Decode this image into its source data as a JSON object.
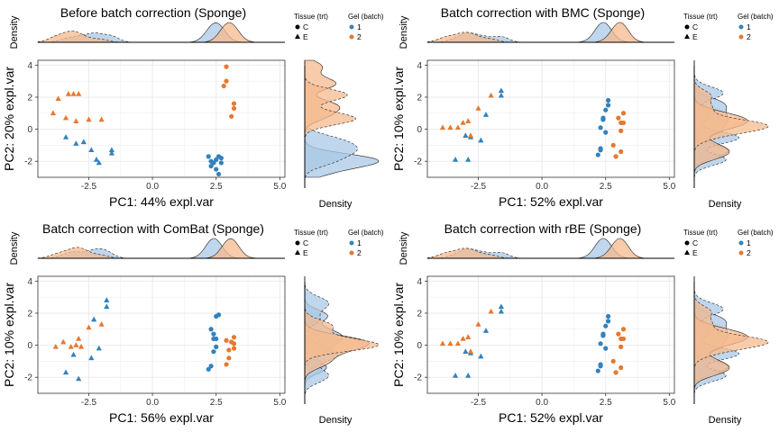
{
  "colors": {
    "batch1": "#3182bd",
    "batch2": "#e6782f",
    "fill1": "#a9c8e6",
    "fill2": "#f6b98e",
    "grid": "#ebebeb"
  },
  "legend": {
    "tissue_title": "Tissue (trt)",
    "tissue_items": [
      "C",
      "E"
    ],
    "batch_title": "Gel (batch)",
    "batch_items": [
      "1",
      "2"
    ]
  },
  "chart_data": [
    {
      "type": "scatter",
      "title": "Before batch correction (Sponge)",
      "xlabel": "PC1: 44% expl.var",
      "ylabel": "PC2: 20% expl.var",
      "density_label": "Density",
      "xlim": [
        -4.5,
        5.2
      ],
      "ylim": [
        -3.0,
        4.3
      ],
      "xticks": [
        -2.5,
        0.0,
        2.5,
        5.0
      ],
      "yticks": [
        -2,
        0,
        2,
        4
      ],
      "series": [
        {
          "tissue": "E",
          "batch": "1",
          "points": [
            [
              -3.4,
              -0.5
            ],
            [
              -3.0,
              -0.9
            ],
            [
              -2.7,
              -0.8
            ],
            [
              -2.4,
              -1.3
            ],
            [
              -2.2,
              -1.9
            ],
            [
              -2.1,
              -2.1
            ],
            [
              -1.6,
              -1.3
            ],
            [
              -1.6,
              -1.5
            ]
          ]
        },
        {
          "tissue": "E",
          "batch": "2",
          "points": [
            [
              -3.9,
              1.0
            ],
            [
              -3.7,
              1.9
            ],
            [
              -3.3,
              2.2
            ],
            [
              -3.1,
              2.2
            ],
            [
              -2.9,
              2.2
            ],
            [
              -3.4,
              0.7
            ],
            [
              -3.0,
              0.5
            ],
            [
              -2.5,
              0.6
            ],
            [
              -2.0,
              0.6
            ]
          ]
        },
        {
          "tissue": "C",
          "batch": "1",
          "points": [
            [
              2.2,
              -1.7
            ],
            [
              2.3,
              -2.0
            ],
            [
              2.4,
              -2.1
            ],
            [
              2.5,
              -1.9
            ],
            [
              2.6,
              -1.7
            ],
            [
              2.7,
              -1.8
            ],
            [
              2.5,
              -2.5
            ],
            [
              2.6,
              -2.8
            ],
            [
              2.3,
              -2.3
            ],
            [
              2.7,
              -2.1
            ]
          ]
        },
        {
          "tissue": "C",
          "batch": "2",
          "points": [
            [
              2.9,
              3.9
            ],
            [
              2.9,
              3.0
            ],
            [
              2.8,
              2.7
            ],
            [
              3.2,
              1.6
            ],
            [
              3.2,
              1.3
            ],
            [
              3.1,
              0.8
            ]
          ]
        }
      ]
    },
    {
      "type": "scatter",
      "title": "Batch correction with BMC (Sponge)",
      "xlabel": "PC1: 52% expl.var",
      "ylabel": "PC2: 10% expl.var",
      "density_label": "Density",
      "xlim": [
        -4.5,
        5.2
      ],
      "ylim": [
        -3.0,
        4.3
      ],
      "xticks": [
        -2.5,
        0.0,
        2.5,
        5.0
      ],
      "yticks": [
        -2,
        0,
        2,
        4
      ],
      "series": [
        {
          "tissue": "E",
          "batch": "1",
          "points": [
            [
              -3.4,
              -1.9
            ],
            [
              -2.9,
              -1.9
            ],
            [
              -3.0,
              -0.4
            ],
            [
              -2.8,
              -0.5
            ],
            [
              -2.4,
              -0.7
            ],
            [
              -2.2,
              0.9
            ],
            [
              -1.6,
              2.4
            ],
            [
              -1.6,
              2.1
            ]
          ]
        },
        {
          "tissue": "E",
          "batch": "2",
          "points": [
            [
              -3.9,
              0.1
            ],
            [
              -3.6,
              0.1
            ],
            [
              -3.3,
              0.1
            ],
            [
              -3.1,
              0.4
            ],
            [
              -2.9,
              0.5
            ],
            [
              -2.8,
              -0.4
            ],
            [
              -2.5,
              1.3
            ],
            [
              -2.0,
              2.1
            ]
          ]
        },
        {
          "tissue": "C",
          "batch": "1",
          "points": [
            [
              2.2,
              -1.6
            ],
            [
              2.3,
              -1.2
            ],
            [
              2.3,
              -1.3
            ],
            [
              2.3,
              0.1
            ],
            [
              2.4,
              0.7
            ],
            [
              2.5,
              1.2
            ],
            [
              2.6,
              1.5
            ],
            [
              2.6,
              1.8
            ],
            [
              2.4,
              0.6
            ],
            [
              2.5,
              -0.2
            ]
          ]
        },
        {
          "tissue": "C",
          "batch": "2",
          "points": [
            [
              2.8,
              -1.0
            ],
            [
              2.9,
              -1.7
            ],
            [
              3.1,
              -1.4
            ],
            [
              3.1,
              0.4
            ],
            [
              3.2,
              0.4
            ],
            [
              3.2,
              1.0
            ],
            [
              3.0,
              0.7
            ],
            [
              3.1,
              -0.1
            ]
          ]
        }
      ]
    },
    {
      "type": "scatter",
      "title": "Batch correction with ComBat (Sponge)",
      "xlabel": "PC1: 56% expl.var",
      "ylabel": "PC2: 10% expl.var",
      "density_label": "Density",
      "xlim": [
        -4.5,
        5.2
      ],
      "ylim": [
        -3.0,
        4.3
      ],
      "xticks": [
        -2.5,
        0.0,
        2.5,
        5.0
      ],
      "yticks": [
        -2,
        0,
        2,
        4
      ],
      "series": [
        {
          "tissue": "E",
          "batch": "1",
          "points": [
            [
              -3.4,
              -1.7
            ],
            [
              -2.9,
              -2.1
            ],
            [
              -2.4,
              -0.8
            ],
            [
              -2.1,
              -0.2
            ],
            [
              -1.8,
              2.8
            ],
            [
              -1.8,
              2.4
            ],
            [
              -2.3,
              1.6
            ],
            [
              -3.1,
              -0.6
            ]
          ]
        },
        {
          "tissue": "E",
          "batch": "2",
          "points": [
            [
              -3.8,
              -0.1
            ],
            [
              -3.5,
              0.2
            ],
            [
              -3.2,
              -0.1
            ],
            [
              -2.9,
              0.4
            ],
            [
              -2.8,
              -0.1
            ],
            [
              -2.5,
              1.1
            ],
            [
              -2.0,
              1.3
            ],
            [
              -3.0,
              0.0
            ]
          ]
        },
        {
          "tissue": "C",
          "batch": "1",
          "points": [
            [
              2.2,
              -1.5
            ],
            [
              2.3,
              -1.3
            ],
            [
              2.4,
              -0.4
            ],
            [
              2.4,
              0.4
            ],
            [
              2.5,
              1.8
            ],
            [
              2.6,
              1.9
            ],
            [
              2.4,
              0.7
            ],
            [
              2.5,
              -0.1
            ],
            [
              2.3,
              1.0
            ],
            [
              2.5,
              0.4
            ]
          ]
        },
        {
          "tissue": "C",
          "batch": "2",
          "points": [
            [
              2.9,
              -1.2
            ],
            [
              3.0,
              -0.8
            ],
            [
              3.2,
              0.1
            ],
            [
              3.2,
              0.5
            ],
            [
              3.2,
              -0.2
            ],
            [
              3.1,
              0.2
            ],
            [
              2.9,
              0.3
            ],
            [
              3.0,
              -0.3
            ]
          ]
        }
      ]
    },
    {
      "type": "scatter",
      "title": "Batch correction with rBE (Sponge)",
      "xlabel": "PC1: 52% expl.var",
      "ylabel": "PC2: 10% expl.var",
      "density_label": "Density",
      "xlim": [
        -4.5,
        5.2
      ],
      "ylim": [
        -3.0,
        4.3
      ],
      "xticks": [
        -2.5,
        0.0,
        2.5,
        5.0
      ],
      "yticks": [
        -2,
        0,
        2,
        4
      ],
      "series": [
        {
          "tissue": "E",
          "batch": "1",
          "points": [
            [
              -3.4,
              -1.9
            ],
            [
              -2.9,
              -1.9
            ],
            [
              -3.0,
              -0.4
            ],
            [
              -2.8,
              -0.5
            ],
            [
              -2.4,
              -0.7
            ],
            [
              -2.2,
              0.9
            ],
            [
              -1.6,
              2.4
            ],
            [
              -1.6,
              2.1
            ]
          ]
        },
        {
          "tissue": "E",
          "batch": "2",
          "points": [
            [
              -3.9,
              0.1
            ],
            [
              -3.6,
              0.1
            ],
            [
              -3.3,
              0.1
            ],
            [
              -3.1,
              0.4
            ],
            [
              -2.9,
              0.5
            ],
            [
              -2.8,
              -0.4
            ],
            [
              -2.5,
              1.3
            ],
            [
              -2.0,
              2.1
            ]
          ]
        },
        {
          "tissue": "C",
          "batch": "1",
          "points": [
            [
              2.2,
              -1.6
            ],
            [
              2.3,
              -1.2
            ],
            [
              2.3,
              -1.3
            ],
            [
              2.3,
              0.1
            ],
            [
              2.4,
              0.7
            ],
            [
              2.5,
              1.2
            ],
            [
              2.6,
              1.5
            ],
            [
              2.6,
              1.8
            ],
            [
              2.4,
              0.6
            ],
            [
              2.5,
              -0.2
            ]
          ]
        },
        {
          "tissue": "C",
          "batch": "2",
          "points": [
            [
              2.8,
              -1.0
            ],
            [
              2.9,
              -1.7
            ],
            [
              3.1,
              -1.4
            ],
            [
              3.1,
              0.4
            ],
            [
              3.2,
              0.4
            ],
            [
              3.2,
              1.0
            ],
            [
              3.0,
              0.7
            ],
            [
              3.1,
              -0.1
            ]
          ]
        }
      ]
    }
  ]
}
